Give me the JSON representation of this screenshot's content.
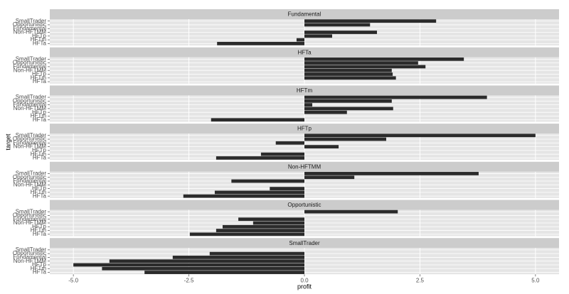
{
  "chart_data": {
    "type": "bar",
    "orientation": "horizontal",
    "color": "#2b2b2b",
    "xlabel": "profit",
    "ylabel": "target",
    "categories": [
      "SmallTrader",
      "Opportunistic",
      "Fundamental",
      "Non-HFTMM",
      "HFTp",
      "HFTm",
      "HFTa"
    ],
    "facets": [
      {
        "title": "Fundamental",
        "values": [
          2.85,
          1.42,
          0,
          1.57,
          0.6,
          -0.17,
          -1.89
        ]
      },
      {
        "title": "HFTa",
        "values": [
          3.45,
          2.46,
          2.62,
          1.89,
          1.91,
          1.98,
          0
        ]
      },
      {
        "title": "HFTm",
        "values": [
          3.95,
          1.89,
          0.17,
          1.92,
          0.92,
          0,
          -2.02
        ]
      },
      {
        "title": "HFTp",
        "values": [
          5.0,
          1.77,
          -0.62,
          0.74,
          0,
          -0.94,
          -1.91
        ]
      },
      {
        "title": "Non-HFTMM",
        "values": [
          3.77,
          1.08,
          -1.58,
          0,
          -0.75,
          -1.94,
          -2.62
        ]
      },
      {
        "title": "Opportunistic",
        "values": [
          2.02,
          0,
          -1.43,
          -1.11,
          -1.77,
          -1.91,
          -2.48
        ]
      },
      {
        "title": "SmallTrader",
        "values": [
          0,
          -2.05,
          -2.85,
          -4.22,
          -5.0,
          -4.38,
          -3.46
        ]
      }
    ],
    "xlim": [
      -5.51,
      5.51
    ],
    "xticks": [
      {
        "value": -5,
        "label": "-5.0"
      },
      {
        "value": -2.5,
        "label": "-2.5"
      },
      {
        "value": 0,
        "label": "0.0"
      },
      {
        "value": 2.5,
        "label": "2.5"
      },
      {
        "value": 5,
        "label": "5.0"
      }
    ],
    "grid": true
  }
}
